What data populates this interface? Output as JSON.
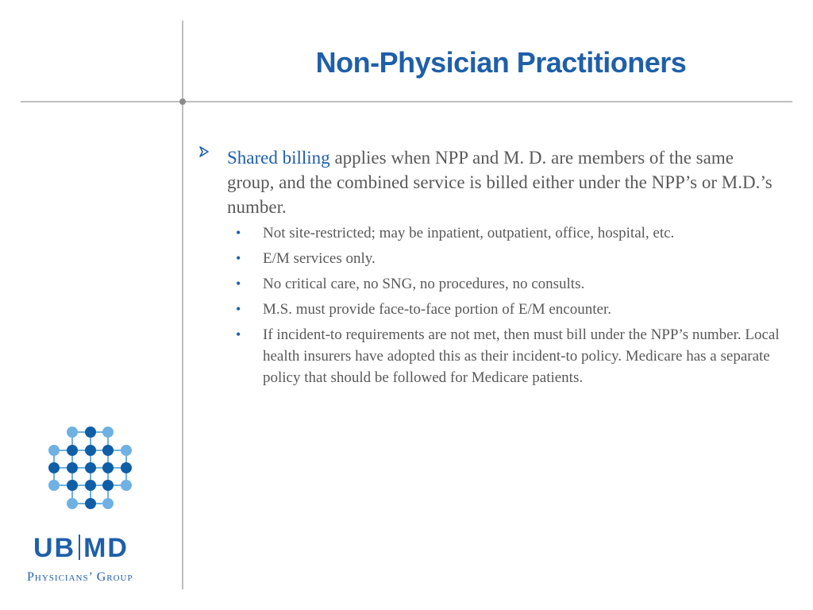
{
  "slide": {
    "title": "Non-Physician Practitioners"
  },
  "main_bullet": {
    "highlight": "Shared billing",
    "text": " applies when NPP and M. D. are members of the same group, and the combined service is billed either under the NPP’s or M.D.’s number."
  },
  "sub_bullets": [
    "Not site-restricted; may be inpatient, outpatient, office, hospital, etc.",
    "E/M services only.",
    "No critical care, no SNG, no procedures, no consults.",
    "M.S. must provide face-to-face portion of E/M encounter.",
    "If incident-to requirements are not met, then must bill under the NPP’s number. Local health insurers have adopted this as their incident-to policy. Medicare has a separate policy that should be followed for Medicare patients."
  ],
  "logo": {
    "brand_left": "UB",
    "brand_right": "MD",
    "tagline": "Physicians’ Group"
  },
  "colors": {
    "accent": "#1f5faa",
    "text": "#595959",
    "light_blue": "#6fb1e3",
    "dark_blue": "#0f5ea8"
  }
}
